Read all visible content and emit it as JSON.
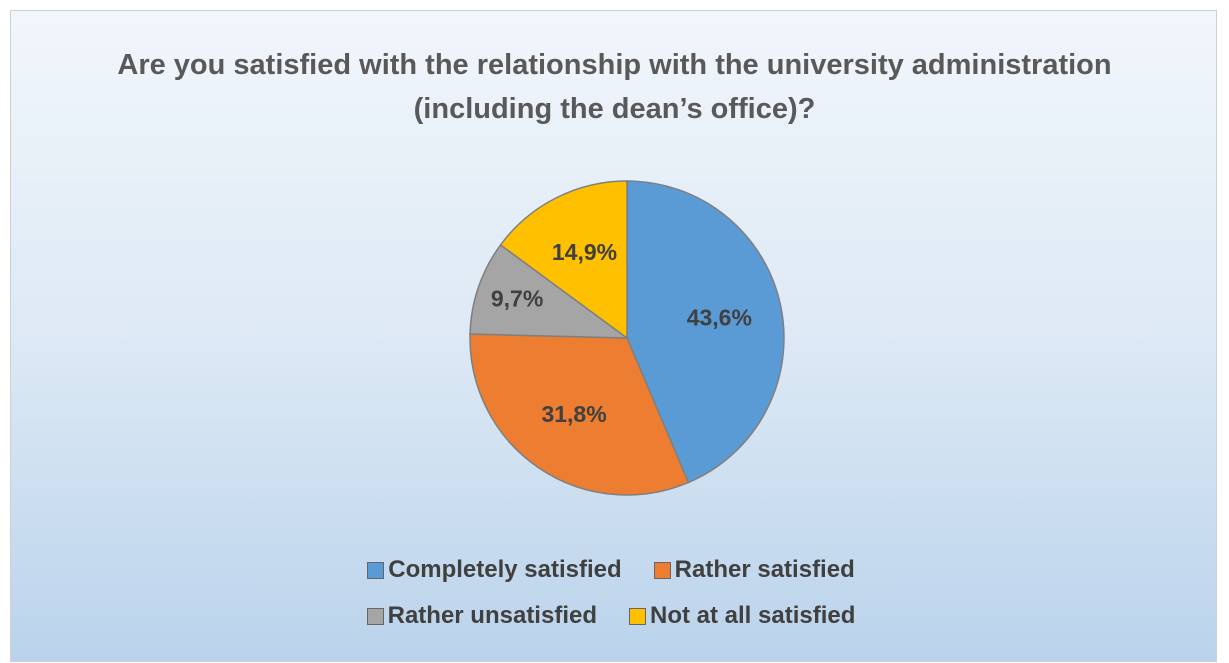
{
  "chart_data": {
    "type": "pie",
    "title": "Are you satisfied with the relationship with the university administration (including the dean’s office)?",
    "categories": [
      "Completely satisfied",
      "Rather satisfied",
      "Rather unsatisfied",
      "Not at all satisfied"
    ],
    "values": [
      43.6,
      31.8,
      9.7,
      14.9
    ],
    "value_labels": [
      "43,6%",
      "31,8%",
      "9,7%",
      "14,9%"
    ],
    "colors": [
      "#5b9bd5",
      "#ed7d31",
      "#a5a5a5",
      "#ffc000"
    ],
    "legend": "bottom"
  }
}
